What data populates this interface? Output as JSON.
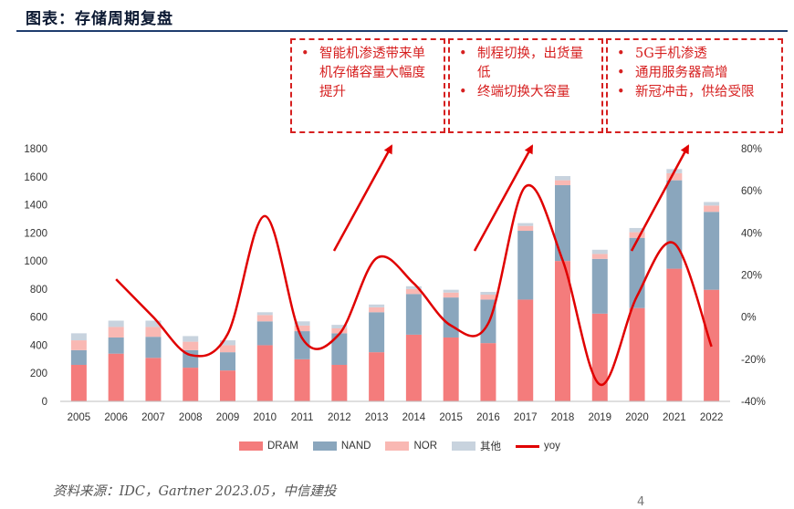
{
  "page": {
    "title": "图表：存储周期复盘",
    "source": "资料来源：IDC，Gartner 2023.05，中信建投",
    "page_number": "4"
  },
  "annotations": [
    {
      "items": [
        "智能机渗透带来单机存储容量大幅度提升"
      ]
    },
    {
      "items": [
        "制程切换，出货量低",
        "终端切换大容量"
      ]
    },
    {
      "items": [
        "5G手机渗透",
        "通用服务器高增",
        "新冠冲击，供给受限"
      ]
    }
  ],
  "colors": {
    "DRAM": "#f47c7c",
    "NAND": "#8aa6bd",
    "NOR": "#f9b8b3",
    "其他": "#c8d3de",
    "yoy": "#e00000",
    "annotation": "#d62020"
  },
  "chart_data": {
    "type": "bar",
    "stacked": true,
    "categories": [
      "2005",
      "2006",
      "2007",
      "2008",
      "2009",
      "2010",
      "2011",
      "2012",
      "2013",
      "2014",
      "2015",
      "2016",
      "2017",
      "2018",
      "2019",
      "2020",
      "2021",
      "2022"
    ],
    "series": [
      {
        "name": "DRAM",
        "values": [
          260,
          340,
          310,
          240,
          220,
          400,
          300,
          260,
          350,
          475,
          455,
          415,
          725,
          1000,
          625,
          665,
          945,
          795
        ]
      },
      {
        "name": "NAND",
        "values": [
          105,
          115,
          150,
          125,
          130,
          170,
          200,
          225,
          285,
          290,
          285,
          310,
          490,
          540,
          390,
          500,
          630,
          555
        ]
      },
      {
        "name": "NOR",
        "values": [
          70,
          75,
          70,
          60,
          50,
          45,
          40,
          35,
          35,
          35,
          35,
          35,
          35,
          35,
          35,
          40,
          50,
          45
        ]
      },
      {
        "name": "其他",
        "values": [
          50,
          45,
          45,
          40,
          35,
          20,
          30,
          25,
          20,
          20,
          20,
          20,
          20,
          30,
          30,
          30,
          30,
          25
        ]
      },
      {
        "name": "yoy",
        "type": "line",
        "axis": "right",
        "values": [
          null,
          18,
          0,
          -18,
          -8,
          48,
          -10,
          -8,
          28,
          16,
          -4,
          -3,
          62,
          27,
          -32,
          10,
          35,
          -14
        ]
      }
    ],
    "ylim": [
      0,
      1800
    ],
    "yticks": [
      "0",
      "200",
      "400",
      "600",
      "800",
      "1000",
      "1200",
      "1400",
      "1600",
      "1800"
    ],
    "y2lim": [
      -40,
      80
    ],
    "y2ticks": [
      "-40%",
      "-20%",
      "0%",
      "20%",
      "40%",
      "60%",
      "80%"
    ],
    "legend": [
      "DRAM",
      "NAND",
      "NOR",
      "其他",
      "yoy"
    ],
    "legend_position": "bottom",
    "grid": false
  }
}
